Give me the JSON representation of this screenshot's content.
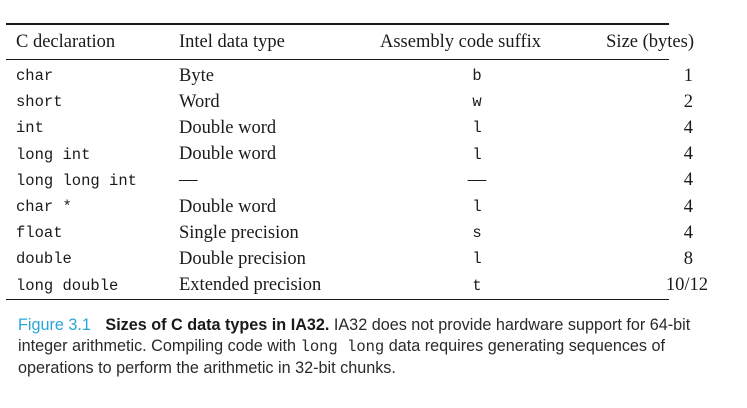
{
  "table": {
    "headers": [
      "C declaration",
      "Intel data type",
      "Assembly code suffix",
      "Size (bytes)"
    ],
    "rows": [
      [
        "char",
        "Byte",
        "b",
        "1"
      ],
      [
        "short",
        "Word",
        "w",
        "2"
      ],
      [
        "int",
        "Double word",
        "l",
        "4"
      ],
      [
        "long int",
        "Double word",
        "l",
        "4"
      ],
      [
        "long long int",
        "—",
        "—",
        "4"
      ],
      [
        "char *",
        "Double word",
        "l",
        "4"
      ],
      [
        "float",
        "Single precision",
        "s",
        "4"
      ],
      [
        "double",
        "Double precision",
        "l",
        "8"
      ],
      [
        "long double",
        "Extended precision",
        "t",
        "10/12"
      ]
    ]
  },
  "caption": {
    "label": "Figure 3.1",
    "title": "Sizes of C data types in IA32.",
    "text_before_code": "IA32 does not provide hardware support for 64-bit integer arithmetic. Compiling code with",
    "code": "long long",
    "text_after_code": "data requires generating sequences of operations to perform the arithmetic in 32-bit chunks."
  }
}
